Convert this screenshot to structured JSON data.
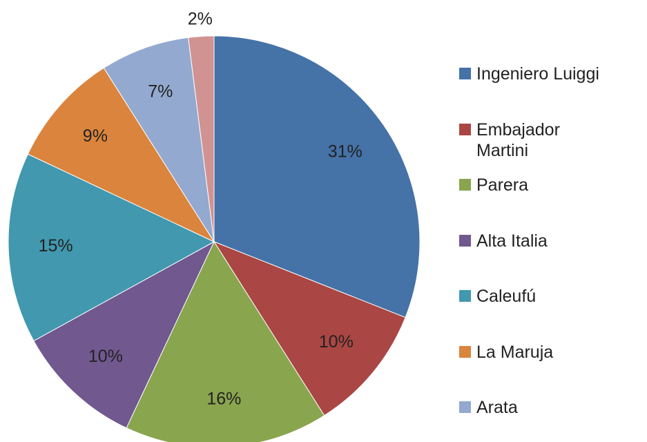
{
  "chart_data": {
    "type": "pie",
    "categories": [
      "Ingeniero Luiggi",
      "Embajador Martini",
      "Parera",
      "Alta Italia",
      "Caleufú",
      "La Maruja",
      "Arata",
      null
    ],
    "values": [
      31,
      10,
      16,
      10,
      15,
      9,
      7,
      2
    ],
    "value_labels": [
      "31%",
      "10%",
      "16%",
      "10%",
      "15%",
      "9%",
      "7%",
      "2%"
    ],
    "colors": [
      "#4572a7",
      "#aa4643",
      "#89a54e",
      "#71588f",
      "#4198af",
      "#db843d",
      "#93a9cf",
      "#d19392"
    ],
    "legend": "right"
  }
}
